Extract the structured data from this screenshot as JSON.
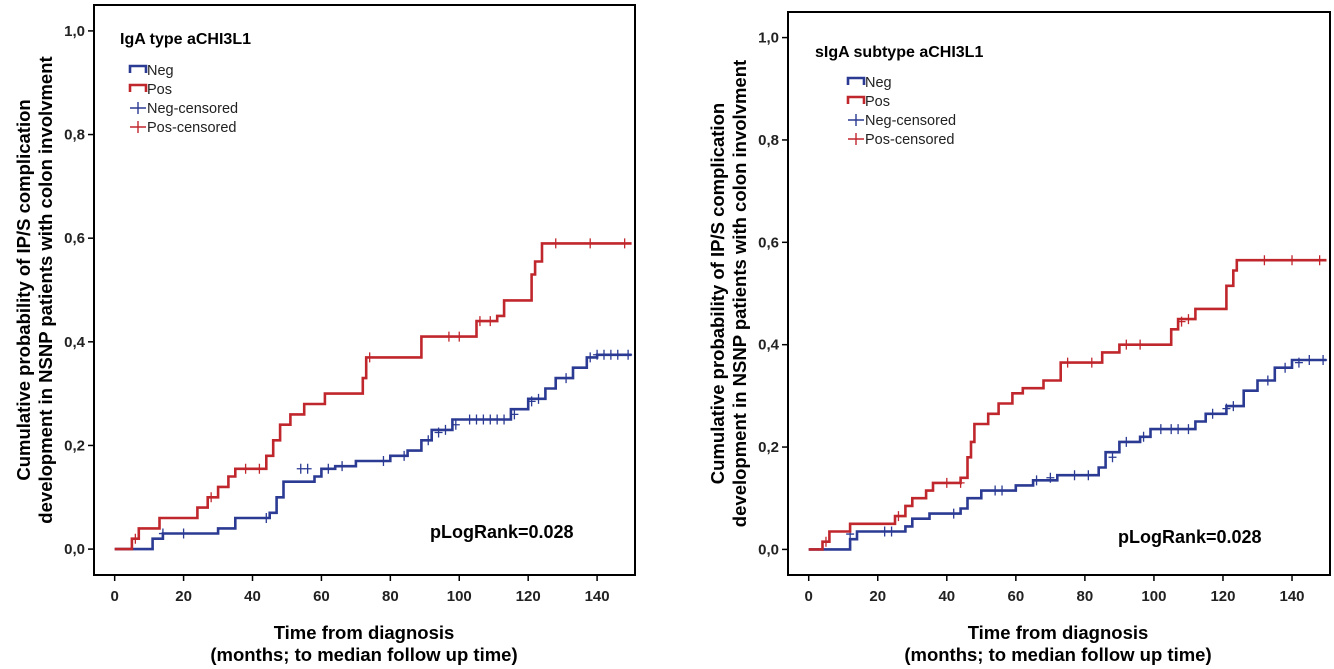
{
  "chart_data": [
    {
      "type": "line",
      "subtitle": "IgA type aCHI3L1",
      "annotation": "pLogRank=0.028",
      "ylabel_lines": [
        "Cumulative probability of IP/S complication",
        "development in NSNP patients with colon involvment"
      ],
      "xlabel_lines": [
        "Time from diagnosis",
        "(months; to median follow up time)"
      ],
      "xlim": [
        -6,
        151
      ],
      "ylim": [
        -0.05,
        1.05
      ],
      "xticks": [
        0,
        20,
        40,
        60,
        80,
        100,
        120,
        140
      ],
      "yticks": [
        0,
        0.2,
        0.4,
        0.6,
        0.8,
        1.0
      ],
      "ytick_labels": [
        "0,0",
        "0,2",
        "0,4",
        "0,6",
        "0,8",
        "1,0"
      ],
      "legend": [
        "Neg",
        "Pos",
        "Neg-censored",
        "Pos-censored"
      ],
      "legend_position": "top-left",
      "grid": false,
      "series": [
        {
          "name": "Neg",
          "color": "#2b3a93",
          "steps": [
            [
              0,
              0
            ],
            [
              11,
              0.02
            ],
            [
              14,
              0.03
            ],
            [
              30,
              0.04
            ],
            [
              35,
              0.06
            ],
            [
              45,
              0.07
            ],
            [
              47,
              0.1
            ],
            [
              49,
              0.13
            ],
            [
              58,
              0.14
            ],
            [
              60,
              0.155
            ],
            [
              64,
              0.16
            ],
            [
              70,
              0.17
            ],
            [
              80,
              0.18
            ],
            [
              85,
              0.19
            ],
            [
              89,
              0.21
            ],
            [
              92,
              0.23
            ],
            [
              98,
              0.25
            ],
            [
              115,
              0.27
            ],
            [
              120,
              0.29
            ],
            [
              125,
              0.31
            ],
            [
              128,
              0.33
            ],
            [
              133,
              0.35
            ],
            [
              137,
              0.37
            ],
            [
              140,
              0.375
            ],
            [
              150,
              0.375
            ]
          ],
          "censored": [
            [
              14,
              0.03
            ],
            [
              20,
              0.03
            ],
            [
              44,
              0.06
            ],
            [
              54,
              0.155
            ],
            [
              56,
              0.155
            ],
            [
              62,
              0.155
            ],
            [
              66,
              0.16
            ],
            [
              78,
              0.17
            ],
            [
              84,
              0.18
            ],
            [
              91,
              0.21
            ],
            [
              94,
              0.225
            ],
            [
              96,
              0.23
            ],
            [
              99,
              0.24
            ],
            [
              103,
              0.25
            ],
            [
              105,
              0.25
            ],
            [
              107,
              0.25
            ],
            [
              109,
              0.25
            ],
            [
              111,
              0.25
            ],
            [
              113,
              0.25
            ],
            [
              116,
              0.26
            ],
            [
              121,
              0.285
            ],
            [
              123,
              0.29
            ],
            [
              131,
              0.33
            ],
            [
              138,
              0.37
            ],
            [
              140,
              0.375
            ],
            [
              142,
              0.375
            ],
            [
              144,
              0.375
            ],
            [
              146,
              0.375
            ],
            [
              149,
              0.375
            ]
          ]
        },
        {
          "name": "Pos",
          "color": "#c0272d",
          "steps": [
            [
              0,
              0
            ],
            [
              5,
              0.02
            ],
            [
              7,
              0.04
            ],
            [
              13,
              0.06
            ],
            [
              24,
              0.08
            ],
            [
              27,
              0.1
            ],
            [
              30,
              0.12
            ],
            [
              33,
              0.14
            ],
            [
              35,
              0.155
            ],
            [
              44,
              0.18
            ],
            [
              46,
              0.21
            ],
            [
              48,
              0.24
            ],
            [
              51,
              0.26
            ],
            [
              55,
              0.28
            ],
            [
              61,
              0.3
            ],
            [
              72,
              0.33
            ],
            [
              73,
              0.37
            ],
            [
              89,
              0.41
            ],
            [
              105,
              0.44
            ],
            [
              111,
              0.45
            ],
            [
              113,
              0.48
            ],
            [
              121,
              0.53
            ],
            [
              122,
              0.555
            ],
            [
              124,
              0.59
            ],
            [
              150,
              0.59
            ]
          ],
          "censored": [
            [
              6,
              0.02
            ],
            [
              28,
              0.1
            ],
            [
              38,
              0.155
            ],
            [
              42,
              0.155
            ],
            [
              74,
              0.37
            ],
            [
              97,
              0.41
            ],
            [
              100,
              0.41
            ],
            [
              106,
              0.44
            ],
            [
              109,
              0.44
            ],
            [
              128,
              0.59
            ],
            [
              138,
              0.59
            ],
            [
              148,
              0.59
            ]
          ]
        }
      ]
    },
    {
      "type": "line",
      "subtitle": "sIgA subtype aCHI3L1",
      "annotation": "pLogRank=0.028",
      "ylabel_lines": [
        "Cumulative probability of IP/S complication",
        "development in NSNP patients with colon involvment"
      ],
      "xlabel_lines": [
        "Time from diagnosis",
        "(months; to median follow up time)"
      ],
      "xlim": [
        -6,
        151
      ],
      "ylim": [
        -0.05,
        1.05
      ],
      "xticks": [
        0,
        20,
        40,
        60,
        80,
        100,
        120,
        140
      ],
      "yticks": [
        0,
        0.2,
        0.4,
        0.6,
        0.8,
        1.0
      ],
      "ytick_labels": [
        "0,0",
        "0,2",
        "0,4",
        "0,6",
        "0,8",
        "1,0"
      ],
      "legend": [
        "Neg",
        "Pos",
        "Neg-censored",
        "Pos-censored"
      ],
      "legend_position": "top-left",
      "grid": false,
      "series": [
        {
          "name": "Neg",
          "color": "#2b3a93",
          "steps": [
            [
              0,
              0
            ],
            [
              12,
              0.02
            ],
            [
              14,
              0.035
            ],
            [
              28,
              0.045
            ],
            [
              30,
              0.06
            ],
            [
              35,
              0.07
            ],
            [
              44,
              0.08
            ],
            [
              46,
              0.1
            ],
            [
              50,
              0.115
            ],
            [
              60,
              0.125
            ],
            [
              65,
              0.135
            ],
            [
              72,
              0.145
            ],
            [
              84,
              0.16
            ],
            [
              86,
              0.19
            ],
            [
              90,
              0.21
            ],
            [
              96,
              0.22
            ],
            [
              99,
              0.235
            ],
            [
              112,
              0.25
            ],
            [
              115,
              0.265
            ],
            [
              121,
              0.28
            ],
            [
              126,
              0.31
            ],
            [
              130,
              0.33
            ],
            [
              135,
              0.355
            ],
            [
              140,
              0.37
            ],
            [
              150,
              0.37
            ]
          ],
          "censored": [
            [
              12,
              0.03
            ],
            [
              22,
              0.035
            ],
            [
              24,
              0.035
            ],
            [
              42,
              0.07
            ],
            [
              54,
              0.115
            ],
            [
              56,
              0.115
            ],
            [
              66,
              0.135
            ],
            [
              70,
              0.14
            ],
            [
              77,
              0.145
            ],
            [
              81,
              0.145
            ],
            [
              88,
              0.18
            ],
            [
              92,
              0.21
            ],
            [
              97,
              0.22
            ],
            [
              102,
              0.235
            ],
            [
              105,
              0.235
            ],
            [
              107,
              0.235
            ],
            [
              110,
              0.235
            ],
            [
              117,
              0.265
            ],
            [
              121,
              0.275
            ],
            [
              123,
              0.28
            ],
            [
              133,
              0.33
            ],
            [
              138,
              0.355
            ],
            [
              142,
              0.365
            ],
            [
              145,
              0.37
            ],
            [
              149,
              0.37
            ]
          ]
        },
        {
          "name": "Pos",
          "color": "#c0272d",
          "steps": [
            [
              0,
              0
            ],
            [
              4,
              0.015
            ],
            [
              6,
              0.035
            ],
            [
              12,
              0.05
            ],
            [
              25,
              0.065
            ],
            [
              28,
              0.085
            ],
            [
              30,
              0.1
            ],
            [
              34,
              0.115
            ],
            [
              36,
              0.13
            ],
            [
              44,
              0.14
            ],
            [
              46,
              0.18
            ],
            [
              47,
              0.21
            ],
            [
              48,
              0.245
            ],
            [
              52,
              0.265
            ],
            [
              55,
              0.285
            ],
            [
              59,
              0.305
            ],
            [
              62,
              0.315
            ],
            [
              68,
              0.33
            ],
            [
              73,
              0.365
            ],
            [
              85,
              0.385
            ],
            [
              90,
              0.4
            ],
            [
              105,
              0.43
            ],
            [
              107,
              0.45
            ],
            [
              112,
              0.47
            ],
            [
              121,
              0.515
            ],
            [
              123,
              0.545
            ],
            [
              124,
              0.565
            ],
            [
              150,
              0.565
            ]
          ],
          "censored": [
            [
              5,
              0.015
            ],
            [
              26,
              0.065
            ],
            [
              40,
              0.13
            ],
            [
              44,
              0.13
            ],
            [
              75,
              0.365
            ],
            [
              82,
              0.365
            ],
            [
              92,
              0.4
            ],
            [
              96,
              0.4
            ],
            [
              108,
              0.445
            ],
            [
              110,
              0.45
            ],
            [
              132,
              0.565
            ],
            [
              140,
              0.565
            ],
            [
              148,
              0.565
            ]
          ]
        }
      ]
    }
  ]
}
